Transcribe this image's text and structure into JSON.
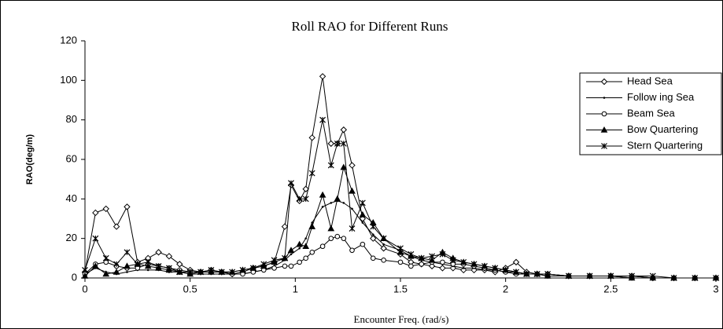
{
  "chart_data": {
    "type": "line",
    "title": "Roll RAO for Different Runs",
    "x_label": "Encounter Freq.  (rad/s)",
    "y_label": "RAO(deg/m)",
    "x": [
      0,
      0.05,
      0.1,
      0.15,
      0.2,
      0.25,
      0.3,
      0.35,
      0.4,
      0.45,
      0.5,
      0.55,
      0.6,
      0.65,
      0.7,
      0.75,
      0.8,
      0.85,
      0.9,
      0.95,
      0.98,
      1.02,
      1.05,
      1.08,
      1.13,
      1.17,
      1.2,
      1.23,
      1.27,
      1.32,
      1.37,
      1.42,
      1.5,
      1.55,
      1.6,
      1.65,
      1.7,
      1.75,
      1.8,
      1.85,
      1.9,
      1.95,
      2.0,
      2.05,
      2.1,
      2.15,
      2.2,
      2.3,
      2.4,
      2.5,
      2.6,
      2.7,
      2.8,
      2.9,
      3.0
    ],
    "series": [
      {
        "name": "Head Sea",
        "color": "#000000",
        "marker": "diamond",
        "values": [
          3,
          33,
          35,
          26,
          36,
          8,
          10,
          13,
          11,
          7,
          4,
          3,
          4,
          3,
          2,
          3,
          5,
          6,
          8,
          26,
          47,
          39,
          45,
          71,
          102,
          68,
          68,
          75,
          57,
          30,
          20,
          15,
          12,
          8,
          7,
          6,
          5,
          5,
          4,
          4,
          4,
          3,
          5,
          8,
          3,
          2,
          2,
          1,
          1,
          1,
          1,
          0,
          0,
          0,
          0
        ]
      },
      {
        "name": "Follow ing Sea",
        "color": "#000000",
        "marker": "dot",
        "values": [
          2,
          5,
          3,
          2,
          3,
          4,
          4,
          4,
          3,
          3,
          2,
          2,
          2,
          2,
          2,
          2,
          3,
          4,
          6,
          9,
          12,
          15,
          20,
          28,
          36,
          38,
          39,
          38,
          35,
          28,
          22,
          17,
          14,
          11,
          9,
          8,
          7,
          6,
          5,
          5,
          4,
          4,
          3,
          3,
          2,
          2,
          2,
          1,
          1,
          1,
          1,
          0,
          0,
          0,
          0
        ]
      },
      {
        "name": "Beam Sea",
        "color": "#000000",
        "marker": "circle",
        "values": [
          2,
          7,
          8,
          6,
          5,
          5,
          7,
          6,
          5,
          4,
          3,
          3,
          3,
          3,
          2,
          2,
          3,
          4,
          5,
          6,
          6,
          8,
          10,
          13,
          16,
          20,
          21,
          20,
          14,
          17,
          10,
          9,
          8,
          6,
          7,
          8,
          8,
          7,
          7,
          6,
          5,
          4,
          3,
          2,
          2,
          2,
          1,
          1,
          1,
          1,
          0,
          0,
          0,
          0,
          0
        ]
      },
      {
        "name": "Bow Quartering",
        "color": "#000000",
        "marker": "triangle",
        "values": [
          1,
          6,
          2,
          3,
          6,
          7,
          6,
          5,
          4,
          3,
          2,
          3,
          3,
          3,
          3,
          4,
          5,
          6,
          8,
          10,
          14,
          17,
          16,
          26,
          42,
          25,
          40,
          56,
          44,
          32,
          28,
          20,
          13,
          11,
          10,
          9,
          13,
          10,
          8,
          7,
          6,
          5,
          4,
          3,
          2,
          2,
          1,
          1,
          1,
          1,
          0,
          0,
          0,
          0,
          0
        ]
      },
      {
        "name": "Stern Quartering",
        "color": "#000000",
        "marker": "asterisk",
        "values": [
          4,
          20,
          10,
          7,
          13,
          7,
          8,
          6,
          5,
          3,
          3,
          3,
          4,
          3,
          3,
          4,
          5,
          7,
          9,
          10,
          48,
          40,
          40,
          53,
          80,
          57,
          68,
          68,
          25,
          38,
          26,
          20,
          15,
          12,
          10,
          11,
          12,
          9,
          8,
          7,
          6,
          5,
          4,
          3,
          2,
          2,
          2,
          1,
          1,
          1,
          1,
          1,
          0,
          0,
          0
        ]
      }
    ],
    "xlim": [
      0,
      3
    ],
    "xticks": [
      0,
      0.5,
      1,
      1.5,
      2,
      2.5,
      3
    ],
    "ylim": [
      0,
      120
    ],
    "yticks": [
      0,
      20,
      40,
      60,
      80,
      100,
      120
    ],
    "grid": false,
    "legend": "right"
  }
}
